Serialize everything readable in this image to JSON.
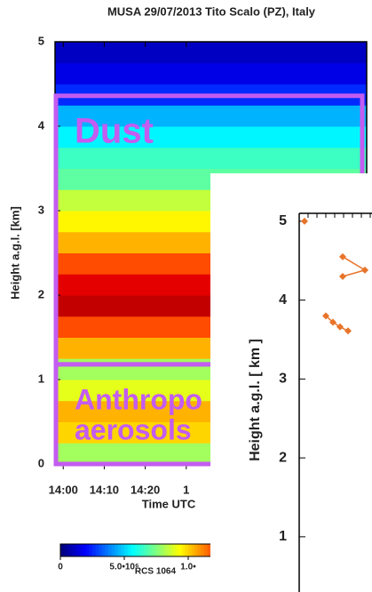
{
  "chart_data": [
    {
      "type": "heatmap",
      "title": "MUSA   29/07/2013   Tito Scalo (PZ), Italy",
      "xlabel": "Time UTC",
      "ylabel": "Height a.g.l. [km]",
      "xlim": [
        838,
        914
      ],
      "xticks": [
        {
          "value": 840,
          "label": "14:00"
        },
        {
          "value": 850,
          "label": "14:10"
        },
        {
          "value": 860,
          "label": "14:20"
        },
        {
          "value": 870,
          "label": "1"
        }
      ],
      "ylim": [
        0,
        5
      ],
      "yticks": [
        0,
        1,
        2,
        3,
        4,
        5
      ],
      "y": [
        0,
        0.25,
        0.5,
        0.75,
        1,
        1.25,
        1.5,
        1.75,
        2,
        2.25,
        2.5,
        2.75,
        3,
        3.25,
        3.5,
        3.75,
        4,
        4.25,
        4.5,
        4.75
      ],
      "values": [
        8000000,
        10000000,
        10500000,
        9000000,
        8000000,
        10500000,
        12000000,
        14000000,
        13500000,
        12000000,
        10500000,
        9500000,
        8500000,
        7000000,
        6500000,
        5500000,
        4500000,
        2500000,
        1500000,
        1000000
      ],
      "colorbar": {
        "label": "RCS 1064",
        "lim": [
          0,
          15000000
        ],
        "ticks": [
          0,
          {
            "value": 5000000,
            "label": "5.0•10⁶"
          },
          {
            "value": 10000000,
            "label": "1.0•"
          }
        ]
      },
      "annotations": [
        {
          "text": [
            "Dust"
          ],
          "range": [
            1.18,
            4.36
          ],
          "color": "#c35cf0"
        },
        {
          "text": [
            "Anthropo",
            "aerosols"
          ],
          "range": [
            0,
            1.18
          ],
          "color": "#c35cf0"
        }
      ]
    },
    {
      "type": "line",
      "ylabel": "Height a.g.l. [ km ]",
      "xlim": [
        0,
        1
      ],
      "ylim": [
        0.3,
        5.1
      ],
      "yticks": [
        1,
        2,
        3,
        4,
        5
      ],
      "color": "#e8742a",
      "x": [
        0.06,
        null,
        0.49,
        0.74,
        0.49,
        null,
        0.3,
        0.38,
        0.46,
        0.55
      ],
      "values": [
        5.0,
        null,
        4.55,
        4.38,
        4.3,
        null,
        3.8,
        3.72,
        3.66,
        3.61
      ]
    }
  ]
}
